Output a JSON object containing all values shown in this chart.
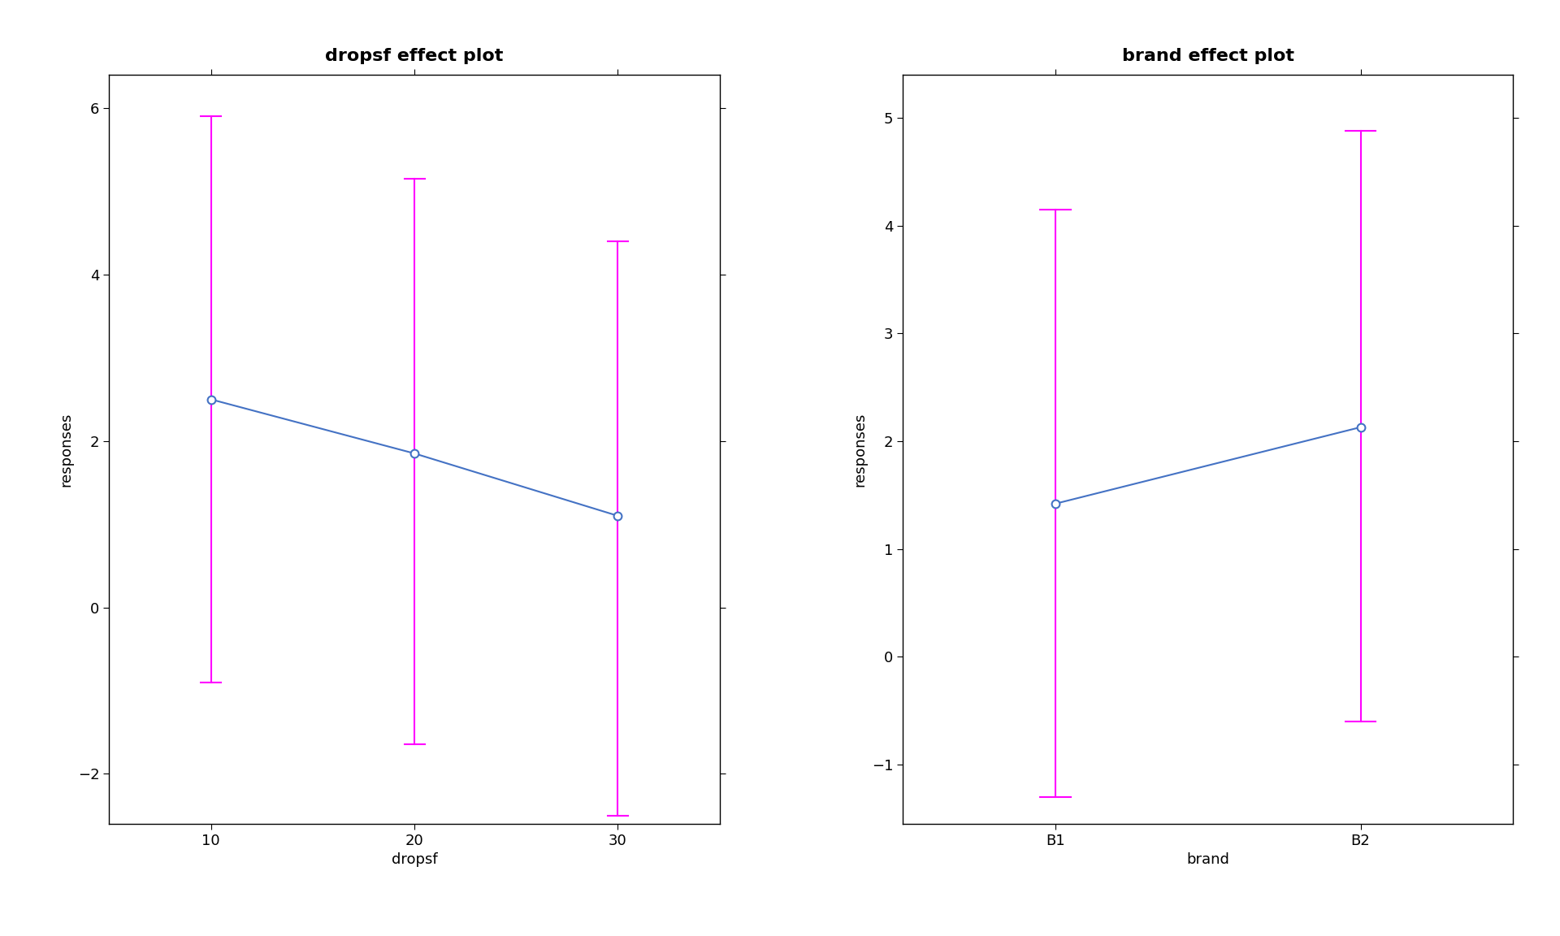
{
  "plot1": {
    "title": "dropsf effect plot",
    "xlabel": "dropsf",
    "ylabel": "responses",
    "x": [
      10,
      20,
      30
    ],
    "y": [
      2.5,
      1.85,
      1.1
    ],
    "ci_lower": [
      -0.9,
      -1.65,
      -2.5
    ],
    "ci_upper": [
      5.9,
      5.15,
      4.4
    ],
    "ylim": [
      -2.6,
      6.4
    ],
    "yticks": [
      -2,
      0,
      2,
      4,
      6
    ],
    "xticks": [
      10,
      20,
      30
    ]
  },
  "plot2": {
    "title": "brand effect plot",
    "xlabel": "brand",
    "ylabel": "responses",
    "x": [
      0,
      1
    ],
    "x_labels": [
      "B1",
      "B2"
    ],
    "y": [
      1.42,
      2.13
    ],
    "ci_lower": [
      -1.3,
      -0.6
    ],
    "ci_upper": [
      4.15,
      4.88
    ],
    "ylim": [
      -1.55,
      5.4
    ],
    "yticks": [
      -1,
      0,
      1,
      2,
      3,
      4,
      5
    ],
    "xticks": [
      0,
      1
    ]
  },
  "line_color": "#4472C4",
  "errorbar_color": "#FF00FF",
  "marker_facecolor": "white",
  "marker_edgecolor": "#4472C4",
  "marker_size": 50,
  "line_width": 1.5,
  "errorbar_linewidth": 1.5,
  "background_color": "#FFFFFF",
  "title_fontsize": 16,
  "label_fontsize": 13,
  "tick_fontsize": 13
}
